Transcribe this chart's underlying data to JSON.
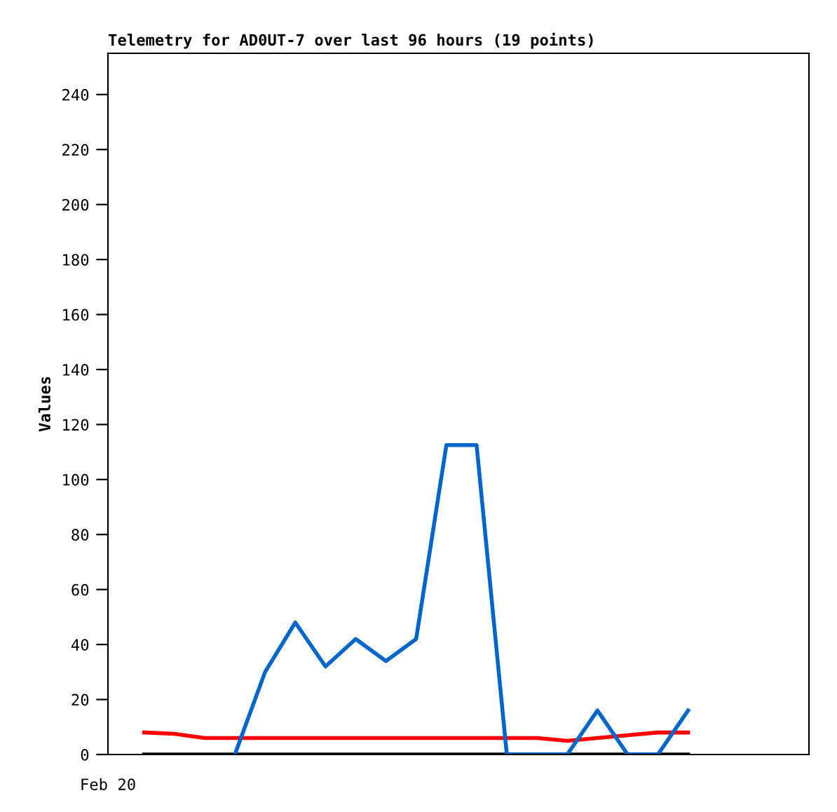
{
  "chart_data": {
    "type": "line",
    "title": "Telemetry for AD0UT-7 over last 96 hours (19 points)",
    "ylabel": "Values",
    "categories": [
      null,
      null,
      null,
      null,
      null,
      null,
      null,
      null,
      null,
      null,
      null,
      null,
      null,
      null,
      null,
      null,
      null,
      null,
      null
    ],
    "annotations": [
      "Feb 20"
    ],
    "ylim": [
      0,
      255
    ],
    "yticks": [
      0,
      20,
      40,
      60,
      80,
      100,
      120,
      140,
      160,
      180,
      200,
      220,
      240
    ],
    "grid": false,
    "marker": "none",
    "line_style": "solid",
    "series": [
      {
        "color": "#000000",
        "values": [
          0,
          0,
          0,
          0,
          0,
          0,
          0,
          0,
          0,
          0,
          0,
          0,
          0,
          0,
          0,
          0,
          0,
          0,
          0
        ]
      },
      {
        "color": "#ff0000",
        "values": [
          8,
          7.5,
          6,
          6,
          6,
          6,
          6,
          6,
          6,
          6,
          6,
          6,
          6,
          6,
          5,
          6,
          7,
          8,
          8
        ]
      },
      {
        "color": "#0066cc",
        "values": [
          null,
          null,
          null,
          0,
          30,
          48,
          32,
          42,
          34,
          42,
          112.5,
          112.5,
          0,
          0,
          0,
          16,
          0,
          0,
          16
        ]
      }
    ]
  }
}
